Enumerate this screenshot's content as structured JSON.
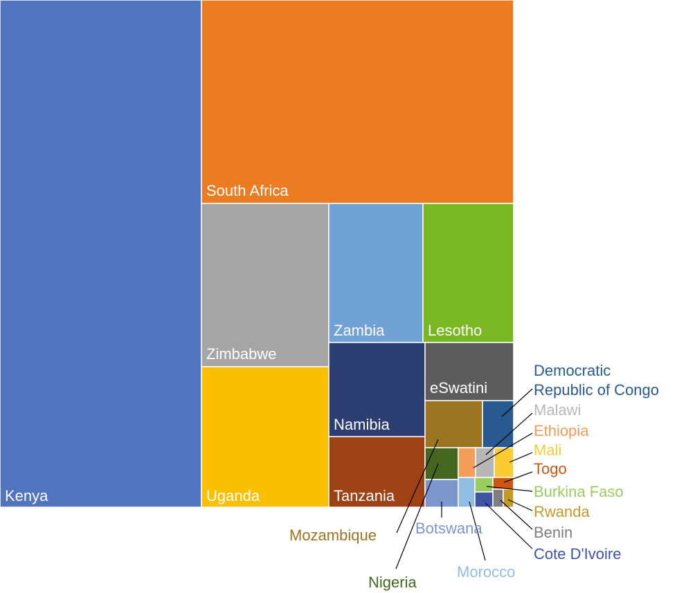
{
  "chart_data": {
    "type": "treemap",
    "title": "",
    "items": [
      {
        "label": "Kenya",
        "value": 212,
        "color": "#5273BD"
      },
      {
        "label": "South Africa",
        "value": 133,
        "color": "#EC7C22"
      },
      {
        "label": "Zimbabwe",
        "value": 43,
        "color": "#A5A5A5"
      },
      {
        "label": "Uganda",
        "value": 37.5,
        "color": "#FAC000"
      },
      {
        "label": "Zambia",
        "value": 22.4,
        "color": "#70A2D6"
      },
      {
        "label": "Lesotho",
        "value": 21.3,
        "color": "#79B723"
      },
      {
        "label": "Namibia",
        "value": 14.9,
        "color": "#2D3F72"
      },
      {
        "label": "Tanzania",
        "value": 14.4,
        "color": "#9E4215"
      },
      {
        "label": "eSwatini",
        "value": 7.8,
        "color": "#5D5D5D"
      },
      {
        "label": "Mozambique",
        "value": 4.6,
        "color": "#9A7420"
      },
      {
        "label": "Democratic Republic of Congo",
        "value": 2.4,
        "color": "#285A90"
      },
      {
        "label": "Nigeria",
        "value": 1.6,
        "color": "#44661E"
      },
      {
        "label": "Botswana",
        "value": 1.4,
        "color": "#7B96CC"
      },
      {
        "label": "Ethiopia",
        "value": 0.8,
        "color": "#F39D59"
      },
      {
        "label": "Malawi",
        "value": 0.8,
        "color": "#B7B7B7"
      },
      {
        "label": "Mali",
        "value": 0.8,
        "color": "#FACB32"
      },
      {
        "label": "Morocco",
        "value": 0.7,
        "color": "#92BDE2"
      },
      {
        "label": "Burkina Faso",
        "value": 0.4,
        "color": "#9ACD60"
      },
      {
        "label": "Togo",
        "value": 0.3,
        "color": "#D05512"
      },
      {
        "label": "Cote D'Ivoire",
        "value": 0.4,
        "color": "#3E54A3"
      },
      {
        "label": "Benin",
        "value": 0.2,
        "color": "#7E7E7E"
      },
      {
        "label": "Rwanda",
        "value": 0.2,
        "color": "#C49A26"
      }
    ]
  }
}
